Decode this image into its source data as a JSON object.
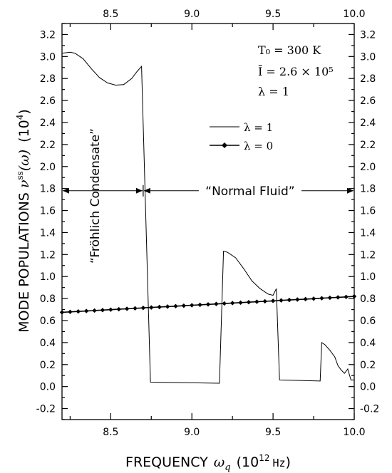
{
  "chart_data": {
    "type": "line",
    "xlabel": "FREQUENCY ω_q (10^12 Hz)",
    "ylabel": "MODE POPULATIONS ν^ss(ω) (10^4)",
    "xlim": [
      8.2,
      10.0
    ],
    "ylim": [
      -0.3,
      3.3
    ],
    "x_ticks": [
      8.5,
      9.0,
      9.5,
      10.0
    ],
    "x_tick_labels": [
      "8.5",
      "9.0",
      "9.5",
      "10.0"
    ],
    "y_ticks": [
      -0.2,
      0.0,
      0.2,
      0.4,
      0.6,
      0.8,
      1.0,
      1.2,
      1.4,
      1.6,
      1.8,
      2.0,
      2.2,
      2.4,
      2.6,
      2.8,
      3.0,
      3.2
    ],
    "y_tick_labels": [
      "-0.2",
      "0.0",
      "0.2",
      "0.4",
      "0.6",
      "0.8",
      "1.0",
      "1.2",
      "1.4",
      "1.6",
      "1.8",
      "2.0",
      "2.2",
      "2.4",
      "2.6",
      "2.8",
      "3.0",
      "3.2"
    ],
    "grid": false,
    "legend_position": "upper-right",
    "series": [
      {
        "name": "λ = 1",
        "style": "line",
        "x": [
          8.2,
          8.25,
          8.28,
          8.33,
          8.38,
          8.43,
          8.48,
          8.53,
          8.58,
          8.63,
          8.66,
          8.69,
          8.745,
          9.17,
          9.195,
          9.22,
          9.27,
          9.32,
          9.37,
          9.42,
          9.47,
          9.5,
          9.52,
          9.54,
          9.79,
          9.8,
          9.82,
          9.85,
          9.88,
          9.9,
          9.92,
          9.94,
          9.96,
          9.98,
          10.0
        ],
        "y": [
          3.03,
          3.04,
          3.03,
          2.98,
          2.89,
          2.81,
          2.76,
          2.74,
          2.745,
          2.8,
          2.86,
          2.91,
          0.04,
          0.03,
          1.23,
          1.22,
          1.17,
          1.07,
          0.96,
          0.89,
          0.84,
          0.83,
          0.89,
          0.06,
          0.05,
          0.4,
          0.38,
          0.33,
          0.27,
          0.19,
          0.15,
          0.12,
          0.16,
          0.06,
          0.06
        ]
      },
      {
        "name": "λ = 0",
        "style": "line-diamond",
        "x": [
          8.2,
          8.25,
          8.3,
          8.35,
          8.4,
          8.45,
          8.5,
          8.55,
          8.6,
          8.65,
          8.7,
          8.75,
          8.8,
          8.85,
          8.9,
          8.95,
          9.0,
          9.05,
          9.1,
          9.15,
          9.2,
          9.25,
          9.3,
          9.35,
          9.4,
          9.45,
          9.5,
          9.55,
          9.6,
          9.65,
          9.7,
          9.75,
          9.8,
          9.85,
          9.9,
          9.95,
          10.0
        ],
        "y": [
          0.675,
          0.679,
          0.683,
          0.687,
          0.691,
          0.695,
          0.699,
          0.703,
          0.707,
          0.711,
          0.715,
          0.719,
          0.723,
          0.727,
          0.731,
          0.735,
          0.739,
          0.743,
          0.747,
          0.751,
          0.755,
          0.759,
          0.763,
          0.767,
          0.771,
          0.775,
          0.779,
          0.783,
          0.787,
          0.791,
          0.795,
          0.799,
          0.803,
          0.807,
          0.811,
          0.815,
          0.82
        ]
      }
    ],
    "annotations": {
      "condensate_label": "“Fröhlich Condensate”",
      "normal_label": "“Normal Fluid”",
      "divider_x": 8.7,
      "arrow_y": 1.78
    }
  },
  "params": {
    "temperature": "T₀ = 300 K",
    "intensity": "Ī = 2.6 × 10⁵",
    "lambda": "λ = 1"
  },
  "axis_titles": {
    "x_prefix": "FREQUENCY",
    "x_symbol": "ω",
    "x_sub": "q",
    "x_unit_open": "(10",
    "x_unit_exp": "12",
    "x_unit_hz": "Hz",
    "x_unit_close": ")",
    "y_prefix": "MODE POPULATIONS",
    "y_symbol": "ν",
    "y_sup": "ss",
    "y_arg": "(ω)",
    "y_unit": "(10",
    "y_unit_exp": "4",
    "y_unit_close": ")"
  },
  "colors": {
    "line": "#000000",
    "background": "#ffffff"
  }
}
